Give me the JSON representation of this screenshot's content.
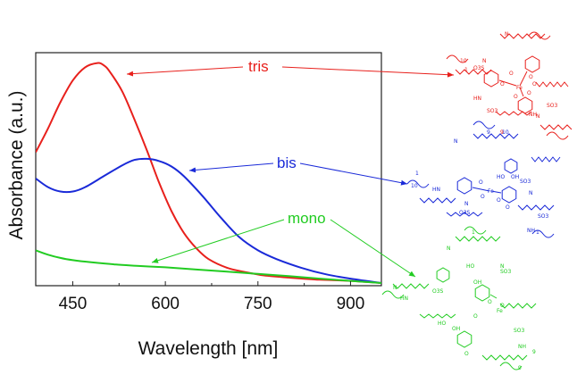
{
  "chart_data": {
    "type": "line",
    "xlabel": "Wavelength [nm]",
    "ylabel": "Absorbance (a.u.)",
    "xlim": [
      390,
      950
    ],
    "ylim": [
      0,
      1.0
    ],
    "xticks": [
      450,
      600,
      750,
      900
    ],
    "y_tick_labels_shown": false,
    "grid": false,
    "series": [
      {
        "name": "tris",
        "color": "#e8201c",
        "x": [
          390,
          410,
          430,
          450,
          470,
          490,
          500,
          510,
          530,
          550,
          570,
          590,
          610,
          630,
          650,
          670,
          700,
          730,
          760,
          800,
          850,
          900,
          950
        ],
        "y": [
          0.6,
          0.71,
          0.83,
          0.93,
          0.99,
          1.01,
          1.0,
          0.97,
          0.88,
          0.75,
          0.61,
          0.46,
          0.33,
          0.23,
          0.16,
          0.11,
          0.07,
          0.05,
          0.035,
          0.025,
          0.015,
          0.01,
          0.0
        ]
      },
      {
        "name": "bis",
        "color": "#1a2ad8",
        "x": [
          390,
          410,
          430,
          450,
          470,
          500,
          530,
          550,
          570,
          590,
          610,
          630,
          660,
          690,
          720,
          750,
          780,
          820,
          860,
          900,
          950
        ],
        "y": [
          0.48,
          0.44,
          0.42,
          0.42,
          0.44,
          0.49,
          0.54,
          0.565,
          0.57,
          0.56,
          0.535,
          0.49,
          0.4,
          0.3,
          0.21,
          0.15,
          0.11,
          0.07,
          0.04,
          0.02,
          0.0
        ]
      },
      {
        "name": "mono",
        "color": "#22cc22",
        "x": [
          390,
          410,
          430,
          450,
          480,
          520,
          560,
          600,
          650,
          700,
          750,
          800,
          850,
          900,
          950
        ],
        "y": [
          0.15,
          0.13,
          0.115,
          0.105,
          0.095,
          0.085,
          0.078,
          0.072,
          0.062,
          0.052,
          0.042,
          0.032,
          0.02,
          0.01,
          0.0
        ]
      }
    ],
    "annotations": [
      {
        "text": "tris",
        "color": "#e8201c"
      },
      {
        "text": "bis",
        "color": "#1a2ad8"
      },
      {
        "text": "mono",
        "color": "#22cc22"
      }
    ]
  },
  "structure_labels": {
    "tris": [
      "O3S",
      "SO3",
      "SO3",
      "Fe",
      "O",
      "O",
      "O",
      "O",
      "O",
      "O",
      "HN",
      "NH",
      "N",
      "N",
      "N",
      "10",
      "9",
      "1"
    ],
    "bis": [
      "HN",
      "NH",
      "SO3",
      "O3S",
      "SO3",
      "HO",
      "OH",
      "Fe",
      "O",
      "O",
      "O",
      "O",
      "N",
      "N",
      "N",
      "1",
      "10",
      "9",
      "10",
      "1"
    ],
    "mono": [
      "HN",
      "O3S",
      "SO3",
      "SO3",
      "OH",
      "HO",
      "OH",
      "HO",
      "Fe",
      "O",
      "O",
      "O",
      "O",
      "NH",
      "N",
      "N",
      "N",
      "1",
      "9",
      "9"
    ]
  }
}
